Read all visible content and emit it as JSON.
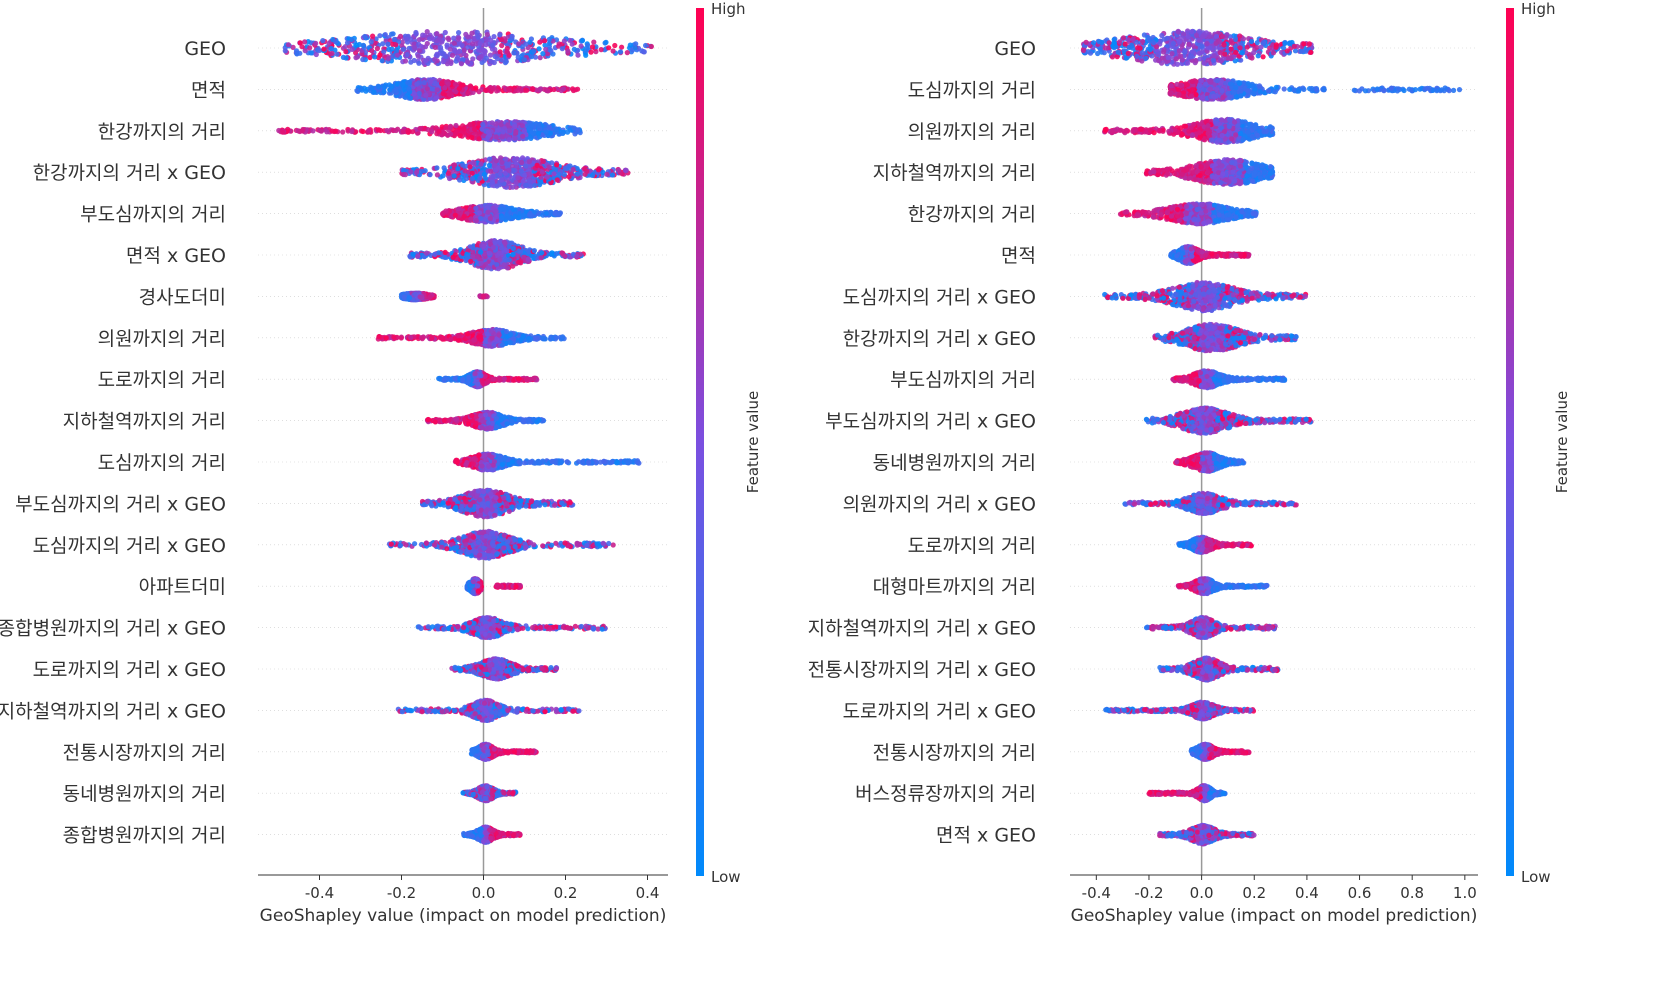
{
  "colors": {
    "low": "#008afb",
    "high": "#ff0052",
    "zero_line": "#999999",
    "axis": "#333333",
    "row_line": "#cccccc"
  },
  "colorbar": {
    "high_label": "High",
    "low_label": "Low",
    "title": "Feature value"
  },
  "chart_data": [
    {
      "type": "beeswarm",
      "xlabel": "GeoShapley value (impact on model prediction)",
      "xlim": [
        -0.55,
        0.45
      ],
      "xticks": [
        -0.4,
        -0.2,
        0.0,
        0.2,
        0.4
      ],
      "xtick_labels": [
        "-0.4",
        "-0.2",
        "0.0",
        "0.2",
        "0.4"
      ],
      "features": [
        {
          "label": "GEO",
          "min": -0.49,
          "max": 0.41,
          "core": [
            -0.28,
            0.12
          ],
          "low_side": "mix",
          "width": 1.0,
          "gap": null
        },
        {
          "label": "면적",
          "min": -0.31,
          "max": 0.23,
          "core": [
            -0.2,
            -0.08
          ],
          "low_side": "left",
          "width": 0.6,
          "gap": null
        },
        {
          "label": "한강까지의 거리",
          "min": -0.51,
          "max": 0.24,
          "core": [
            -0.04,
            0.14
          ],
          "low_side": "right",
          "width": 0.55,
          "gap": null
        },
        {
          "label": "한강까지의 거리 x GEO",
          "min": -0.2,
          "max": 0.36,
          "core": [
            -0.02,
            0.16
          ],
          "low_side": "mix",
          "width": 0.9,
          "gap": null
        },
        {
          "label": "부도심까지의 거리",
          "min": -0.1,
          "max": 0.19,
          "core": [
            -0.04,
            0.06
          ],
          "low_side": "right",
          "width": 0.5,
          "gap": null
        },
        {
          "label": "면적 x GEO",
          "min": -0.18,
          "max": 0.25,
          "core": [
            -0.02,
            0.08
          ],
          "low_side": "mix",
          "width": 0.85,
          "gap": null
        },
        {
          "label": "경사도더미",
          "min": -0.2,
          "max": 0.01,
          "core": [
            -0.19,
            -0.14
          ],
          "low_side": "left",
          "width": 0.2,
          "gap": [
            -0.12,
            -0.01
          ]
        },
        {
          "label": "의원까지의 거리",
          "min": -0.26,
          "max": 0.21,
          "core": [
            -0.02,
            0.06
          ],
          "low_side": "right",
          "width": 0.5,
          "gap": null
        },
        {
          "label": "도로까지의 거리",
          "min": -0.11,
          "max": 0.13,
          "core": [
            -0.03,
            0.0
          ],
          "low_side": "left",
          "width": 0.45,
          "gap": null
        },
        {
          "label": "지하철역까지의 거리",
          "min": -0.14,
          "max": 0.15,
          "core": [
            -0.02,
            0.04
          ],
          "low_side": "right",
          "width": 0.5,
          "gap": null
        },
        {
          "label": "도심까지의 거리",
          "min": -0.07,
          "max": 0.38,
          "core": [
            -0.02,
            0.04
          ],
          "low_side": "right",
          "width": 0.5,
          "gap": null
        },
        {
          "label": "부도심까지의 거리 x GEO",
          "min": -0.15,
          "max": 0.22,
          "core": [
            -0.04,
            0.05
          ],
          "low_side": "mix",
          "width": 0.8,
          "gap": null
        },
        {
          "label": "도심까지의 거리 x GEO",
          "min": -0.23,
          "max": 0.32,
          "core": [
            -0.04,
            0.05
          ],
          "low_side": "mix",
          "width": 0.8,
          "gap": null
        },
        {
          "label": "아파트더미",
          "min": -0.04,
          "max": 0.09,
          "core": [
            -0.03,
            -0.01
          ],
          "low_side": "left",
          "width": 0.45,
          "gap": [
            -0.005,
            0.03
          ]
        },
        {
          "label": "종합병원까지의 거리 x GEO",
          "min": -0.16,
          "max": 0.3,
          "core": [
            -0.02,
            0.04
          ],
          "low_side": "mix",
          "width": 0.6,
          "gap": null
        },
        {
          "label": "도로까지의 거리 x GEO",
          "min": -0.08,
          "max": 0.18,
          "core": [
            0.0,
            0.06
          ],
          "low_side": "mix",
          "width": 0.6,
          "gap": null
        },
        {
          "label": "지하철역까지의 거리 x GEO",
          "min": -0.21,
          "max": 0.24,
          "core": [
            -0.02,
            0.03
          ],
          "low_side": "mix",
          "width": 0.6,
          "gap": null
        },
        {
          "label": "전통시장까지의 거리",
          "min": -0.03,
          "max": 0.13,
          "core": [
            -0.01,
            0.02
          ],
          "low_side": "left",
          "width": 0.45,
          "gap": null
        },
        {
          "label": "동네병원까지의 거리",
          "min": -0.05,
          "max": 0.08,
          "core": [
            -0.01,
            0.02
          ],
          "low_side": "mix",
          "width": 0.45,
          "gap": null
        },
        {
          "label": "종합병원까지의 거리",
          "min": -0.05,
          "max": 0.09,
          "core": [
            -0.01,
            0.02
          ],
          "low_side": "left",
          "width": 0.45,
          "gap": null
        }
      ]
    },
    {
      "type": "beeswarm",
      "xlabel": "GeoShapley value (impact on model prediction)",
      "xlim": [
        -0.5,
        1.05
      ],
      "xticks": [
        -0.4,
        -0.2,
        0.0,
        0.2,
        0.4,
        0.6,
        0.8,
        1.0
      ],
      "xtick_labels": [
        "-0.4",
        "-0.2",
        "0.0",
        "0.2",
        "0.4",
        "0.6",
        "0.8",
        "1.0"
      ],
      "features": [
        {
          "label": "GEO",
          "min": -0.45,
          "max": 0.42,
          "core": [
            -0.25,
            0.15
          ],
          "low_side": "mix",
          "width": 1.0,
          "gap": null
        },
        {
          "label": "도심까지의 거리",
          "min": -0.12,
          "max": 0.98,
          "core": [
            -0.06,
            0.15
          ],
          "low_side": "right",
          "width": 0.6,
          "gap": [
            0.47,
            0.58
          ]
        },
        {
          "label": "의원까지의 거리",
          "min": -0.37,
          "max": 0.27,
          "core": [
            0.0,
            0.18
          ],
          "low_side": "right",
          "width": 0.7,
          "gap": null
        },
        {
          "label": "지하철역까지의 거리",
          "min": -0.21,
          "max": 0.27,
          "core": [
            0.0,
            0.2
          ],
          "low_side": "right",
          "width": 0.75,
          "gap": null
        },
        {
          "label": "한강까지의 거리",
          "min": -0.31,
          "max": 0.21,
          "core": [
            -0.1,
            0.08
          ],
          "low_side": "right",
          "width": 0.6,
          "gap": null
        },
        {
          "label": "면적",
          "min": -0.12,
          "max": 0.18,
          "core": [
            -0.08,
            -0.02
          ],
          "low_side": "left",
          "width": 0.5,
          "gap": null
        },
        {
          "label": "도심까지의 거리 x GEO",
          "min": -0.37,
          "max": 0.4,
          "core": [
            -0.08,
            0.1
          ],
          "low_side": "mix",
          "width": 0.85,
          "gap": null
        },
        {
          "label": "한강까지의 거리 x GEO",
          "min": -0.18,
          "max": 0.36,
          "core": [
            -0.04,
            0.12
          ],
          "low_side": "mix",
          "width": 0.8,
          "gap": null
        },
        {
          "label": "부도심까지의 거리",
          "min": -0.11,
          "max": 0.32,
          "core": [
            -0.02,
            0.06
          ],
          "low_side": "right",
          "width": 0.5,
          "gap": null
        },
        {
          "label": "부도심까지의 거리 x GEO",
          "min": -0.21,
          "max": 0.42,
          "core": [
            -0.06,
            0.08
          ],
          "low_side": "mix",
          "width": 0.75,
          "gap": null
        },
        {
          "label": "동네병원까지의 거리",
          "min": -0.1,
          "max": 0.16,
          "core": [
            -0.02,
            0.06
          ],
          "low_side": "right",
          "width": 0.55,
          "gap": null
        },
        {
          "label": "의원까지의 거리 x GEO",
          "min": -0.3,
          "max": 0.36,
          "core": [
            -0.04,
            0.06
          ],
          "low_side": "mix",
          "width": 0.6,
          "gap": null
        },
        {
          "label": "도로까지의 거리",
          "min": -0.09,
          "max": 0.19,
          "core": [
            -0.03,
            0.03
          ],
          "low_side": "left",
          "width": 0.45,
          "gap": null
        },
        {
          "label": "대형마트까지의 거리",
          "min": -0.09,
          "max": 0.25,
          "core": [
            -0.02,
            0.04
          ],
          "low_side": "right",
          "width": 0.45,
          "gap": null
        },
        {
          "label": "지하철역까지의 거리 x GEO",
          "min": -0.21,
          "max": 0.28,
          "core": [
            -0.03,
            0.04
          ],
          "low_side": "mix",
          "width": 0.6,
          "gap": null
        },
        {
          "label": "전통시장까지의 거리 x GEO",
          "min": -0.16,
          "max": 0.29,
          "core": [
            -0.02,
            0.06
          ],
          "low_side": "mix",
          "width": 0.65,
          "gap": null
        },
        {
          "label": "도로까지의 거리 x GEO",
          "min": -0.37,
          "max": 0.21,
          "core": [
            -0.03,
            0.04
          ],
          "low_side": "mix",
          "width": 0.5,
          "gap": null
        },
        {
          "label": "전통시장까지의 거리",
          "min": -0.04,
          "max": 0.18,
          "core": [
            -0.01,
            0.04
          ],
          "low_side": "left",
          "width": 0.45,
          "gap": null
        },
        {
          "label": "버스정류장까지의 거리",
          "min": -0.2,
          "max": 0.09,
          "core": [
            -0.01,
            0.03
          ],
          "low_side": "right",
          "width": 0.45,
          "gap": null
        },
        {
          "label": "면적 x GEO",
          "min": -0.16,
          "max": 0.2,
          "core": [
            -0.03,
            0.04
          ],
          "low_side": "mix",
          "width": 0.55,
          "gap": null
        }
      ]
    }
  ]
}
